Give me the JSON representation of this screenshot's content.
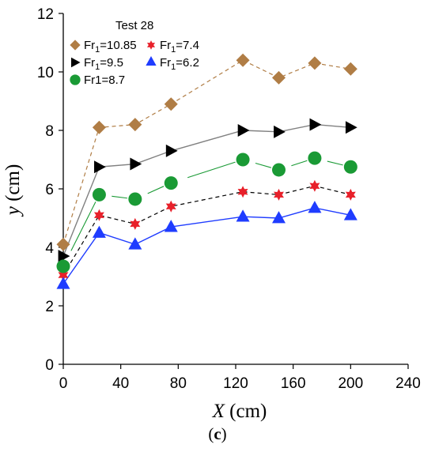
{
  "chart_data": {
    "type": "line",
    "title": "",
    "xlabel_var": "X",
    "xlabel_unit": " (cm)",
    "ylabel_var": "y",
    "ylabel_unit": " (cm)",
    "xlim": [
      0,
      240
    ],
    "ylim": [
      0,
      12
    ],
    "xticks": [
      0,
      40,
      80,
      120,
      160,
      200,
      240
    ],
    "yticks": [
      0,
      2,
      4,
      6,
      8,
      10,
      12
    ],
    "grid": false,
    "legend_title": "Test 28",
    "legend_position": "top-left",
    "x": [
      0,
      25,
      50,
      75,
      125,
      150,
      175,
      200
    ],
    "series": [
      {
        "name": "Fr1=10.85",
        "name_base": "Fr",
        "name_sub": "1",
        "name_rest": "=10.85",
        "marker": "diamond",
        "color": "#b07d45",
        "line_style": "dashed",
        "values": [
          4.1,
          8.1,
          8.2,
          8.9,
          10.4,
          9.8,
          10.3,
          10.1
        ]
      },
      {
        "name": "Fr1=7.4",
        "name_base": "Fr",
        "name_sub": "1",
        "name_rest": "=7.4",
        "marker": "star",
        "color": "#e8202a",
        "line_color": "#000000",
        "line_style": "dashed",
        "values": [
          3.05,
          5.1,
          4.8,
          5.4,
          5.9,
          5.8,
          6.1,
          5.8
        ]
      },
      {
        "name": "Fr1=9.5",
        "name_base": "Fr",
        "name_sub": "1",
        "name_rest": "=9.5",
        "marker": "triangle-right",
        "color": "#000000",
        "line_color": "#808080",
        "line_style": "solid",
        "values": [
          3.7,
          6.75,
          6.85,
          7.3,
          8.0,
          7.95,
          8.2,
          8.1
        ]
      },
      {
        "name": "Fr1=6.2",
        "name_base": "Fr",
        "name_sub": "1",
        "name_rest": "=6.2",
        "marker": "triangle-up",
        "color": "#1f3cff",
        "line_style": "solid",
        "values": [
          2.75,
          4.5,
          4.1,
          4.7,
          5.05,
          5.0,
          5.35,
          5.1
        ]
      },
      {
        "name": "Fr1=8.7",
        "name_base": "Fr1=8.7",
        "name_sub": "",
        "name_rest": "",
        "marker": "circle",
        "color": "#1a9a35",
        "line_style": "solid-broken",
        "values": [
          3.35,
          5.8,
          5.65,
          6.2,
          7.0,
          6.65,
          7.05,
          6.75
        ]
      }
    ]
  },
  "panel_label": "(c)",
  "panel_label_bold": "c"
}
